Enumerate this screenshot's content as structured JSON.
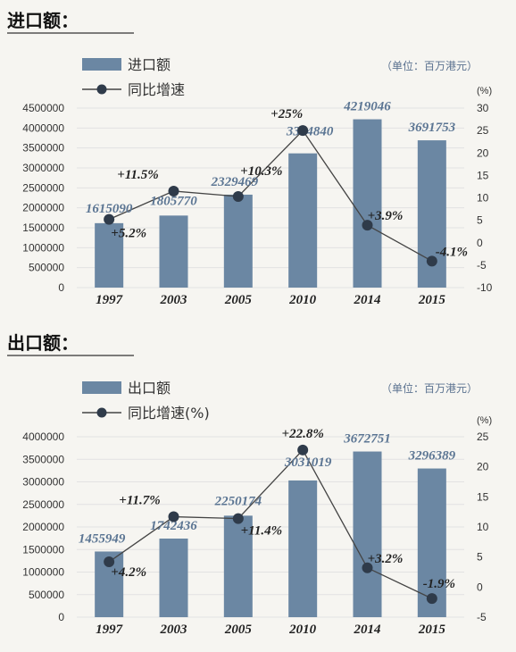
{
  "colors": {
    "bar": "#6b87a3",
    "line": "#444444",
    "marker": "#2f3b4a",
    "grid": "#e2e2e2"
  },
  "chart_data": [
    {
      "type": "bar",
      "title": "进口额：",
      "unit": "（单位：百万港元）",
      "categories": [
        "1997",
        "2003",
        "2005",
        "2010",
        "2014",
        "2015"
      ],
      "y2label": "(%)",
      "ylim": [
        0,
        4500000
      ],
      "y2lim": [
        -10,
        30
      ],
      "yticks": [
        "0",
        "500000",
        "1000000",
        "1500000",
        "2000000",
        "2500000",
        "3000000",
        "3500000",
        "4000000",
        "4500000"
      ],
      "y2ticks": [
        "-10",
        "-5",
        "0",
        "5",
        "10",
        "15",
        "20",
        "25",
        "30"
      ],
      "series": [
        {
          "name": "进口额",
          "type": "bar",
          "values": [
            1615090,
            1805770,
            2329469,
            3364840,
            4219046,
            3691753
          ],
          "labels": [
            "1615090",
            "1805770",
            "2329469",
            "3364840",
            "4219046",
            "3691753"
          ]
        },
        {
          "name": "同比增速",
          "type": "line",
          "axis": "right",
          "values": [
            5.2,
            11.5,
            10.3,
            25,
            3.9,
            -4.1
          ],
          "labels": [
            "+5.2%",
            "+11.5%",
            "+10.3%",
            "+25%",
            "+3.9%",
            "-4.1%"
          ]
        }
      ]
    },
    {
      "type": "bar",
      "title": "出口额：",
      "unit": "（单位：百万港元）",
      "categories": [
        "1997",
        "2003",
        "2005",
        "2010",
        "2014",
        "2015"
      ],
      "y2label": "(%)",
      "ylim": [
        0,
        4000000
      ],
      "y2lim": [
        -5,
        25
      ],
      "yticks": [
        "0",
        "500000",
        "1000000",
        "1500000",
        "2000000",
        "2500000",
        "3000000",
        "3500000",
        "4000000"
      ],
      "y2ticks": [
        "-5",
        "0",
        "5",
        "10",
        "15",
        "20",
        "25"
      ],
      "series": [
        {
          "name": "出口额",
          "type": "bar",
          "values": [
            1455949,
            1742436,
            2250174,
            3031019,
            3672751,
            3296389
          ],
          "labels": [
            "1455949",
            "1742436",
            "2250174",
            "3031019",
            "3672751",
            "3296389"
          ]
        },
        {
          "name": "同比增速(%)",
          "type": "line",
          "axis": "right",
          "values": [
            4.2,
            11.7,
            11.4,
            22.8,
            3.2,
            -1.9
          ],
          "labels": [
            "+4.2%",
            "+11.7%",
            "+11.4%",
            "+22.8%",
            "+3.2%",
            "-1.9%"
          ]
        }
      ]
    }
  ]
}
